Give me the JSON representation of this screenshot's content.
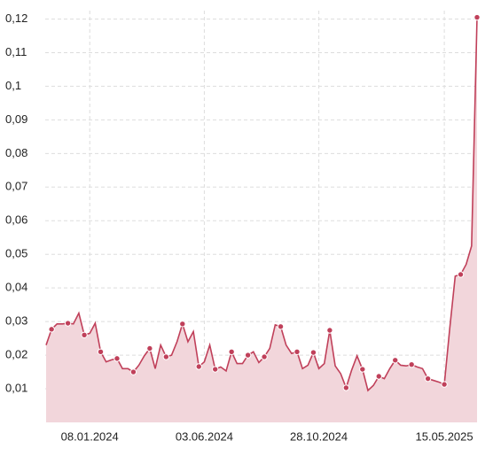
{
  "chart_data": {
    "type": "area",
    "categories": [
      null,
      null,
      null,
      null,
      null,
      null,
      null,
      null,
      "08.01.2024",
      null,
      null,
      null,
      null,
      null,
      null,
      null,
      null,
      null,
      null,
      null,
      null,
      null,
      null,
      null,
      null,
      null,
      null,
      null,
      null,
      "03.06.2024",
      null,
      null,
      null,
      null,
      null,
      null,
      null,
      null,
      null,
      null,
      null,
      null,
      null,
      null,
      null,
      null,
      null,
      null,
      null,
      null,
      "28.10.2024",
      null,
      null,
      null,
      null,
      null,
      null,
      null,
      null,
      null,
      null,
      null,
      null,
      null,
      null,
      null,
      null,
      null,
      null,
      null,
      null,
      null,
      null,
      "15.05.2025",
      null,
      null,
      null,
      null,
      null,
      null
    ],
    "values": [
      0.023,
      0.0277,
      0.0293,
      0.0293,
      0.0295,
      0.0293,
      0.0325,
      0.026,
      0.0265,
      0.0295,
      0.021,
      0.018,
      0.0186,
      0.019,
      0.016,
      0.016,
      0.015,
      0.017,
      0.0198,
      0.022,
      0.016,
      0.023,
      0.0195,
      0.02,
      0.024,
      0.0293,
      0.024,
      0.027,
      0.0166,
      0.018,
      0.023,
      0.0158,
      0.0165,
      0.0153,
      0.021,
      0.0175,
      0.0175,
      0.02,
      0.021,
      0.0178,
      0.0195,
      0.022,
      0.029,
      0.0285,
      0.023,
      0.0205,
      0.021,
      0.016,
      0.017,
      0.0208,
      0.016,
      0.0175,
      0.0274,
      0.0168,
      0.0145,
      0.0103,
      0.0155,
      0.0198,
      0.0158,
      0.0095,
      0.011,
      0.0137,
      0.013,
      0.016,
      0.0185,
      0.017,
      0.0168,
      0.0172,
      0.0165,
      0.016,
      0.013,
      0.0125,
      0.012,
      0.0113,
      0.028,
      0.0435,
      0.044,
      0.047,
      0.0525,
      0.1205
    ],
    "line_color": "#c0405a",
    "fill_color": "#f2d6db",
    "ylim": [
      0,
      0.1225
    ],
    "yticks": [
      {
        "value": 0.01,
        "label": "0,01"
      },
      {
        "value": 0.02,
        "label": "0,02"
      },
      {
        "value": 0.03,
        "label": "0,03"
      },
      {
        "value": 0.04,
        "label": "0,04"
      },
      {
        "value": 0.05,
        "label": "0,05"
      },
      {
        "value": 0.06,
        "label": "0,06"
      },
      {
        "value": 0.07,
        "label": "0,07"
      },
      {
        "value": 0.08,
        "label": "0,08"
      },
      {
        "value": 0.09,
        "label": "0,09"
      },
      {
        "value": 0.1,
        "label": "0,1"
      },
      {
        "value": 0.11,
        "label": "0,11"
      },
      {
        "value": 0.12,
        "label": "0,12"
      }
    ],
    "grid": true
  }
}
